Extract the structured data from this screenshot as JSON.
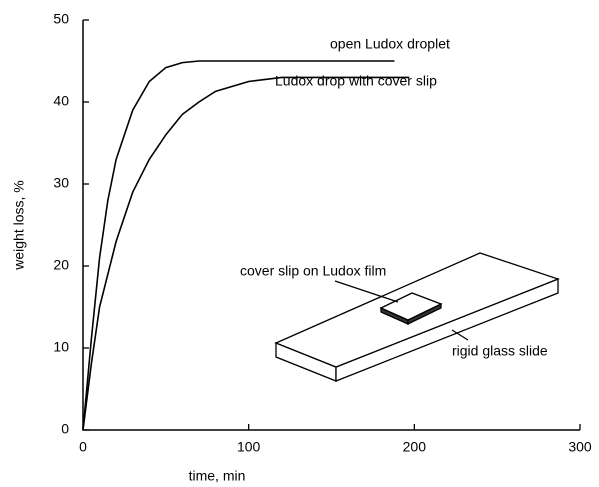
{
  "chart_data": {
    "type": "line",
    "x_label": "time, min",
    "y_label": "weight loss, %",
    "xlim": [
      0,
      300
    ],
    "ylim": [
      0,
      50
    ],
    "xticks": [
      0,
      100,
      200,
      300
    ],
    "yticks": [
      0,
      10,
      20,
      30,
      40,
      50
    ],
    "series": [
      {
        "name": "open Ludox droplet",
        "color": "#000000",
        "x": [
          0,
          5,
          10,
          15,
          20,
          30,
          40,
          50,
          60,
          70,
          80,
          100,
          150,
          188
        ],
        "values": [
          0,
          11,
          21,
          28,
          33,
          39,
          42.5,
          44.2,
          44.8,
          45,
          45,
          45,
          45,
          45
        ]
      },
      {
        "name": "Ludox drop with cover slip",
        "color": "#000000",
        "x": [
          0,
          5,
          10,
          20,
          30,
          40,
          50,
          60,
          70,
          80,
          100,
          120,
          150,
          197
        ],
        "values": [
          0,
          8,
          15,
          23,
          29,
          33,
          36,
          38.5,
          40,
          41.3,
          42.5,
          43,
          43,
          43
        ]
      }
    ],
    "annotations": [
      "cover slip on Ludox film",
      "rigid glass slide"
    ]
  }
}
